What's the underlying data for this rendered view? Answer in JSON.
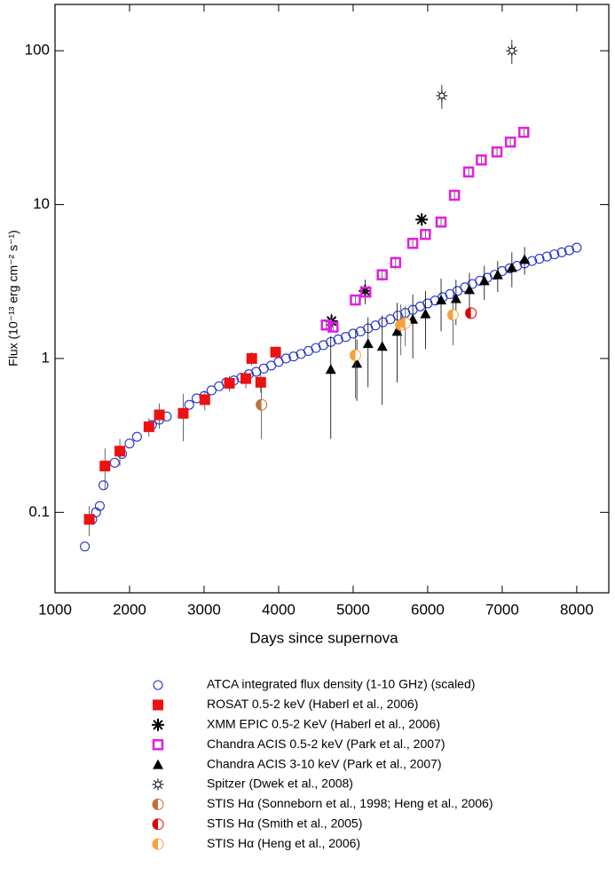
{
  "chart_data": {
    "type": "scatter",
    "x_label": "Days since supernova",
    "y_label": "Flux (10⁻¹³ erg cm⁻² s⁻¹)",
    "log_y": true,
    "xlim": [
      1000,
      8430
    ],
    "xticks": [
      1000,
      2000,
      3000,
      4000,
      5000,
      6000,
      7000,
      8000
    ],
    "ylim": [
      0.03,
      200
    ],
    "yticks": [
      0.1,
      1,
      10,
      100
    ],
    "series": [
      {
        "name": "ATCA integrated flux density (1-10 GHz) (scaled)",
        "color": "#2233cc",
        "marker": "open-circle",
        "x": [
          1400,
          1500,
          1550,
          1600,
          1650,
          1800,
          1900,
          2000,
          2100,
          2300,
          2400,
          2500,
          2800,
          2900,
          3000,
          3100,
          3200,
          3300,
          3400,
          3500,
          3600,
          3700,
          3800,
          3900,
          4000,
          4100,
          4200,
          4300,
          4400,
          4500,
          4600,
          4700,
          4800,
          4900,
          5000,
          5100,
          5200,
          5300,
          5400,
          5500,
          5600,
          5700,
          5800,
          5900,
          6000,
          6100,
          6200,
          6300,
          6400,
          6500,
          6600,
          6700,
          6800,
          6900,
          7000,
          7100,
          7200,
          7300,
          7400,
          7500,
          7600,
          7700,
          7800,
          7900,
          8000
        ],
        "values": [
          0.06,
          0.09,
          0.1,
          0.11,
          0.15,
          0.21,
          0.24,
          0.28,
          0.31,
          0.37,
          0.4,
          0.42,
          0.5,
          0.55,
          0.57,
          0.62,
          0.66,
          0.7,
          0.72,
          0.75,
          0.79,
          0.82,
          0.86,
          0.9,
          0.95,
          1.0,
          1.03,
          1.07,
          1.12,
          1.17,
          1.22,
          1.28,
          1.33,
          1.38,
          1.45,
          1.5,
          1.57,
          1.64,
          1.72,
          1.8,
          1.9,
          1.98,
          2.07,
          2.18,
          2.28,
          2.38,
          2.5,
          2.62,
          2.75,
          2.9,
          3.05,
          3.2,
          3.35,
          3.5,
          3.7,
          3.85,
          4.0,
          4.15,
          4.3,
          4.45,
          4.6,
          4.75,
          4.9,
          5.05,
          5.25
        ]
      },
      {
        "name": "ROSAT 0.5-2 keV (Haberl et al., 2006)",
        "color": "#ee1111",
        "marker": "filled-square",
        "x": [
          1460,
          1670,
          1870,
          2260,
          2400,
          2720,
          3010,
          3340,
          3560,
          3640,
          3760,
          3960
        ],
        "values": [
          0.09,
          0.2,
          0.25,
          0.36,
          0.43,
          0.44,
          0.54,
          0.69,
          0.74,
          1.0,
          0.7,
          1.1
        ],
        "errors": [
          0.02,
          0.06,
          0.05,
          0.05,
          0.08,
          0.15,
          0.08,
          0.08,
          0.1,
          0.1,
          0.1,
          0.06
        ]
      },
      {
        "name": "XMM EPIC 0.5-2 KeV (Haberl et al., 2006)",
        "color": "#000000",
        "marker": "asterisk",
        "x": [
          4710,
          5160,
          5920
        ],
        "values": [
          1.75,
          2.75,
          8.0
        ],
        "errors": [
          0.2,
          0.5,
          0.5
        ]
      },
      {
        "name": "Chandra ACIS 0.5-2 keV (Park et al., 2007)",
        "color": "#e020e0",
        "marker": "open-square",
        "x": [
          4640,
          4730,
          5030,
          5170,
          5390,
          5570,
          5800,
          5970,
          6180,
          6360,
          6550,
          6720,
          6930,
          7110,
          7290
        ],
        "values": [
          1.65,
          1.6,
          2.4,
          2.7,
          3.5,
          4.2,
          5.6,
          6.4,
          7.7,
          11.5,
          16.3,
          19.5,
          22,
          25.5,
          29.5
        ],
        "errors": [
          0.1,
          0.1,
          0.2,
          0.2,
          0.3,
          0.4,
          0.3,
          0.4,
          0.4,
          0.6,
          0.8,
          1,
          1.2,
          1.3,
          1.5
        ]
      },
      {
        "name": "Chandra ACIS 3-10 keV (Park et al., 2007)",
        "color": "#000000",
        "marker": "triangle",
        "x": [
          4700,
          5050,
          5200,
          5390,
          5590,
          5800,
          5970,
          6180,
          6380,
          6560,
          6760,
          6940,
          7130,
          7300
        ],
        "values": [
          0.85,
          0.93,
          1.25,
          1.2,
          1.5,
          1.8,
          1.95,
          2.4,
          2.45,
          2.8,
          3.2,
          3.5,
          3.9,
          4.4
        ],
        "errors": [
          0.55,
          0.4,
          0.6,
          0.7,
          0.8,
          0.8,
          0.8,
          0.9,
          0.8,
          0.8,
          0.8,
          0.8,
          1,
          0.9
        ]
      },
      {
        "name": "Spitzer (Dwek et al., 2008)",
        "color": "#000000",
        "marker": "sun",
        "x": [
          6190,
          7130
        ],
        "values": [
          51,
          100
        ],
        "errors": [
          9,
          18
        ]
      },
      {
        "name": "STIS Hα (Sonneborn et al., 1998; Heng et al., 2006)",
        "color": "#c0703a",
        "marker": "half-circle",
        "x": [
          3770
        ],
        "values": [
          0.5
        ],
        "errors": [
          0.2
        ]
      },
      {
        "name": "STIS Hα (Smith et al., 2005)",
        "color": "#e00000",
        "marker": "half-circle",
        "x": [
          6580
        ],
        "values": [
          1.97
        ],
        "errors": [
          0.1
        ]
      },
      {
        "name": "STIS Hα (Heng et al., 2006)",
        "color": "#f8a040",
        "marker": "half-circle",
        "x": [
          5030,
          5640,
          5700,
          6340
        ],
        "values": [
          1.05,
          1.65,
          1.7,
          1.92
        ],
        "errors": [
          0.5,
          0.6,
          0.5,
          0.7
        ]
      }
    ]
  }
}
